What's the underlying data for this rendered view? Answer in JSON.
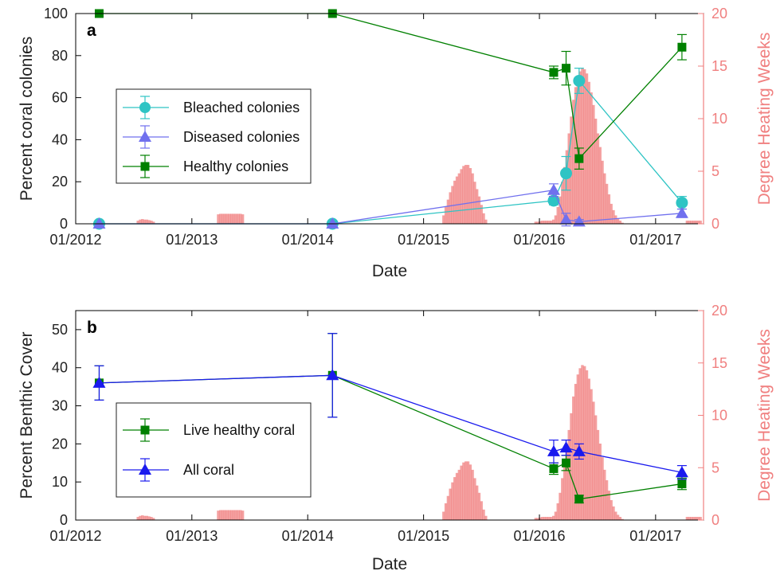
{
  "chart_data": [
    {
      "type": "line",
      "panel_label": "a",
      "xlabel": "Date",
      "ylabel": "Percent coral colonies",
      "ylabel_right": "Degree Heating Weeks",
      "xlim": [
        "2012-01-01",
        "2017-06-01"
      ],
      "ylim": [
        0,
        100
      ],
      "ylim_right": [
        0,
        20
      ],
      "xticks": [
        "01/2012",
        "01/2013",
        "01/2014",
        "01/2015",
        "01/2016",
        "01/2017"
      ],
      "yticks": [
        "0",
        "20",
        "40",
        "60",
        "80",
        "100"
      ],
      "yticks_right": [
        "0",
        "5",
        "10",
        "15",
        "20"
      ],
      "legend_position": "left-middle",
      "series": [
        {
          "name": "Bleached colonies",
          "color": "#2ec4c4",
          "marker": "circle",
          "x": [
            "2012-03-15",
            "2014-03-20",
            "2016-02-15",
            "2016-03-25",
            "2016-05-05",
            "2017-03-25"
          ],
          "y": [
            0,
            0,
            11,
            24,
            68,
            10
          ],
          "err": [
            0,
            0,
            2,
            8,
            6,
            3
          ]
        },
        {
          "name": "Diseased colonies",
          "color": "#7070ee",
          "marker": "triangle",
          "x": [
            "2012-03-15",
            "2014-03-20",
            "2016-02-15",
            "2016-03-25",
            "2016-05-05",
            "2017-03-25"
          ],
          "y": [
            0,
            0,
            16,
            2,
            1,
            5
          ],
          "err": [
            0,
            0,
            3,
            3,
            1,
            2
          ]
        },
        {
          "name": "Healthy colonies",
          "color": "#008000",
          "marker": "square",
          "x": [
            "2012-03-15",
            "2014-03-20",
            "2016-02-15",
            "2016-03-25",
            "2016-05-05",
            "2017-03-25"
          ],
          "y": [
            100,
            100,
            72,
            74,
            31,
            84
          ],
          "err": [
            0,
            0,
            3,
            8,
            5,
            6
          ]
        }
      ]
    },
    {
      "type": "line",
      "panel_label": "b",
      "xlabel": "Date",
      "ylabel": "Percent Benthic Cover",
      "ylabel_right": "Degree Heating Weeks",
      "xlim": [
        "2012-01-01",
        "2017-06-01"
      ],
      "ylim": [
        0,
        55
      ],
      "ylim_right": [
        0,
        20
      ],
      "xticks": [
        "01/2012",
        "01/2013",
        "01/2014",
        "01/2015",
        "01/2016",
        "01/2017"
      ],
      "yticks": [
        "0",
        "10",
        "20",
        "30",
        "40",
        "50"
      ],
      "yticks_right": [
        "0",
        "5",
        "10",
        "15",
        "20"
      ],
      "legend_position": "left-bottom",
      "series": [
        {
          "name": "Live healthy coral",
          "color": "#008000",
          "marker": "square",
          "x": [
            "2012-03-15",
            "2014-03-20",
            "2016-02-15",
            "2016-03-25",
            "2016-05-05",
            "2017-03-25"
          ],
          "y": [
            36,
            38,
            13.5,
            15,
            5.5,
            9.5
          ],
          "err": [
            4.5,
            11,
            1.5,
            2,
            1,
            1.5
          ]
        },
        {
          "name": "All coral",
          "color": "#1a1aee",
          "marker": "triangle",
          "x": [
            "2012-03-15",
            "2014-03-20",
            "2016-02-15",
            "2016-03-25",
            "2016-05-05",
            "2017-03-25"
          ],
          "y": [
            36,
            38,
            18,
            19,
            18,
            12.5
          ],
          "err": [
            4.5,
            11,
            3,
            2,
            2,
            1.8
          ]
        }
      ]
    }
  ],
  "dhw": {
    "color": "#f08080",
    "segments": [
      {
        "start": "2012-07-15",
        "values": [
          0.3,
          0.4,
          0.45,
          0.4,
          0.4,
          0.35,
          0.3,
          0.2
        ]
      },
      {
        "start": "2013-03-25",
        "values": [
          0.9,
          0.95,
          0.95,
          0.95,
          0.95,
          0.95,
          0.95,
          0.95,
          0.95,
          0.95,
          0.95,
          0.9
        ]
      },
      {
        "start": "2015-03-05",
        "values": [
          0.8,
          1.6,
          2.3,
          3.0,
          3.6,
          4.1,
          4.5,
          4.8,
          5.2,
          5.5,
          5.6,
          5.6,
          5.3,
          4.8,
          4.0,
          3.3,
          2.6,
          1.8,
          1.0,
          0.4
        ]
      },
      {
        "start": "2015-12-20",
        "values": [
          0.2,
          0.2,
          0.25,
          0.3,
          0.3,
          0.3,
          0.3,
          0.3,
          0.4,
          0.8,
          1.6,
          2.6,
          4.0,
          5.4,
          7.0,
          8.6,
          10.2,
          11.8,
          13.0,
          13.9,
          14.5,
          14.8,
          14.7,
          14.3,
          13.5,
          12.5,
          11.3,
          10.0,
          8.6,
          7.3,
          6.0,
          4.8,
          3.8,
          2.8,
          1.9,
          1.3,
          0.8,
          0.5,
          0.3,
          0.1
        ]
      },
      {
        "start": "2017-04-10",
        "values": [
          0.3,
          0.3,
          0.3,
          0.3,
          0.3,
          0.3,
          0.3
        ]
      }
    ]
  }
}
